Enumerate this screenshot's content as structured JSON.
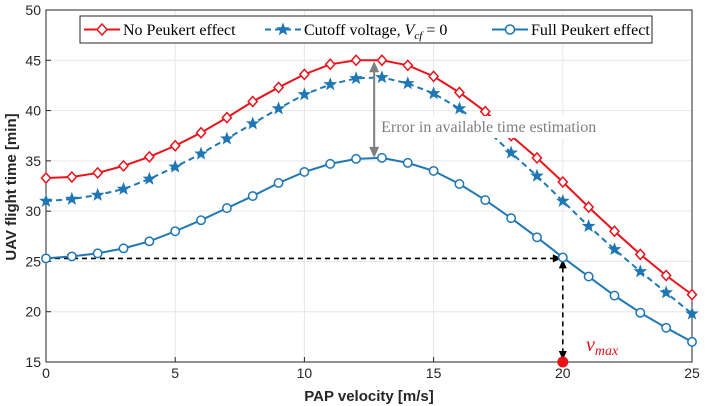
{
  "chart_data": {
    "type": "line",
    "title": "",
    "xlabel": "PAP velocity [m/s]",
    "ylabel": "UAV flight time [min]",
    "xlim": [
      0,
      25
    ],
    "ylim": [
      15,
      50
    ],
    "xticks": [
      "0",
      "5",
      "10",
      "15",
      "20",
      "25"
    ],
    "yticks": [
      "15",
      "20",
      "25",
      "30",
      "35",
      "40",
      "45",
      "50"
    ],
    "grid": true,
    "legend_position": "top",
    "x": [
      0,
      1,
      2,
      3,
      4,
      5,
      6,
      7,
      8,
      9,
      10,
      11,
      12,
      13,
      14,
      15,
      16,
      17,
      18,
      19,
      20,
      21,
      22,
      23,
      24,
      25
    ],
    "series": [
      {
        "name": "No Peukert effect",
        "color": "#e8131b",
        "marker": "diamond",
        "dash": "solid",
        "values": [
          33.3,
          33.4,
          33.8,
          34.5,
          35.4,
          36.5,
          37.8,
          39.3,
          40.9,
          42.3,
          43.6,
          44.6,
          45.0,
          45.0,
          44.5,
          43.4,
          41.8,
          39.9,
          37.5,
          35.3,
          32.9,
          30.4,
          28.0,
          25.7,
          23.6,
          21.7
        ]
      },
      {
        "name": "Cutoff voltage, V_cf = 0",
        "color": "#1f77b4",
        "marker": "star",
        "dash": "dashed",
        "values": [
          31.0,
          31.2,
          31.6,
          32.2,
          33.2,
          34.4,
          35.7,
          37.2,
          38.7,
          40.2,
          41.6,
          42.6,
          43.2,
          43.3,
          42.7,
          41.7,
          40.2,
          38.2,
          35.8,
          33.5,
          31.0,
          28.5,
          26.2,
          24.0,
          21.9,
          19.8
        ]
      },
      {
        "name": "Full Peukert effect",
        "color": "#1f77b4",
        "marker": "circle",
        "dash": "solid",
        "values": [
          25.3,
          25.5,
          25.8,
          26.3,
          27.0,
          28.0,
          29.1,
          30.3,
          31.5,
          32.8,
          33.9,
          34.7,
          35.2,
          35.3,
          34.8,
          34.0,
          32.7,
          31.1,
          29.3,
          27.4,
          25.4,
          23.5,
          21.6,
          19.9,
          18.4,
          17.0
        ]
      }
    ],
    "annotations": {
      "error_text": "Error in available time estimation",
      "error_x": 12.7,
      "error_y_top": 45.0,
      "error_y_bottom": 35.2,
      "vmax_point_x": 20,
      "vmax_point_y": 15,
      "vmax_ref_y": 25.3
    }
  },
  "legend": {
    "item1": "No Peukert effect",
    "item2_prefix": "Cutoff voltage, ",
    "item2_var": "V",
    "item2_sub": "cf",
    "item2_suffix": " = 0",
    "item3": "Full Peukert effect"
  },
  "vmax_label": {
    "main": "v",
    "sub": "max"
  }
}
